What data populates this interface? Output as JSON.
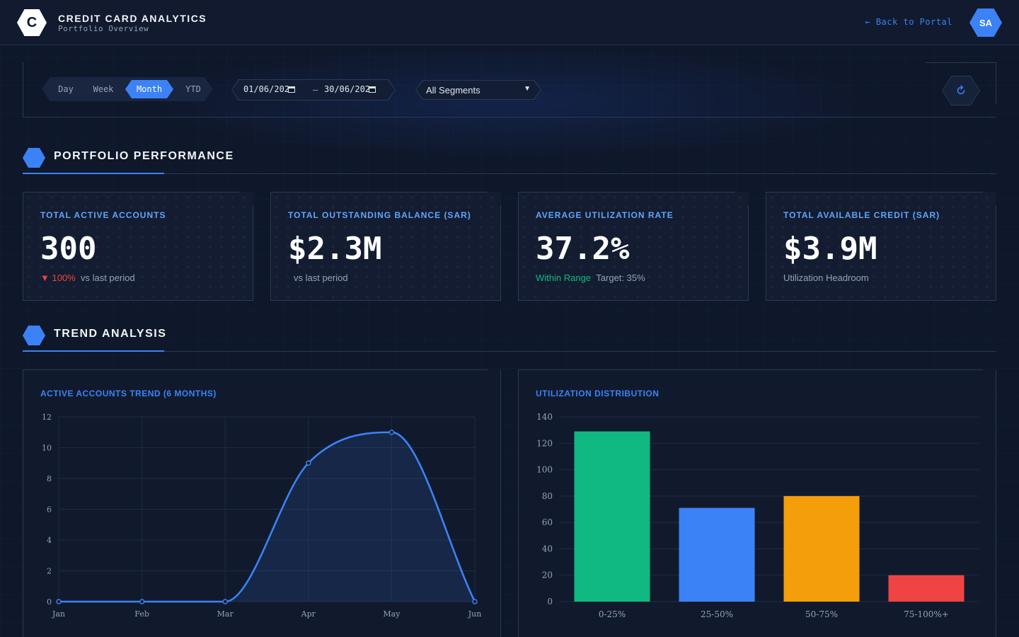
{
  "header": {
    "logo_letter": "C",
    "title": "CREDIT CARD ANALYTICS",
    "subtitle": "Portfolio Overview",
    "back_link": "← Back to Portal",
    "avatar_initials": "SA"
  },
  "filters": {
    "periods": [
      "Day",
      "Week",
      "Month",
      "YTD"
    ],
    "active_period": "Month",
    "date_from": "01/06/202",
    "date_sep": "–",
    "date_to": "30/06/202",
    "segment": "All Segments",
    "refresh_icon": "refresh-icon"
  },
  "sections": {
    "performance": "PORTFOLIO PERFORMANCE",
    "trend": "TREND ANALYSIS"
  },
  "kpis": [
    {
      "label": "TOTAL ACTIVE ACCOUNTS",
      "value": "300",
      "delta": "▼ 100%",
      "note": "vs last period"
    },
    {
      "label": "TOTAL OUTSTANDING BALANCE (SAR)",
      "value": "$2.3M",
      "note": "vs last period"
    },
    {
      "label": "AVERAGE UTILIZATION RATE",
      "value": "37.2%",
      "status": "Within Range",
      "note": "Target: 35%"
    },
    {
      "label": "TOTAL AVAILABLE CREDIT (SAR)",
      "value": "$3.9M",
      "note": "Utilization Headroom"
    }
  ],
  "colors": {
    "accent": "#3b82f6",
    "negative": "#ef4444",
    "positive": "#10b981",
    "background": "#0f172a"
  },
  "charts": {
    "trend_title": "ACTIVE ACCOUNTS TREND (6 MONTHS)",
    "util_title": "UTILIZATION DISTRIBUTION"
  },
  "chart_data": [
    {
      "type": "area",
      "title": "ACTIVE ACCOUNTS TREND (6 MONTHS)",
      "categories": [
        "Jan",
        "Feb",
        "Mar",
        "Apr",
        "May",
        "Jun"
      ],
      "values": [
        0,
        0,
        0,
        9,
        11,
        0
      ],
      "ylim": [
        0,
        12
      ],
      "yticks": [
        0,
        2,
        4,
        6,
        8,
        10,
        12
      ],
      "color": "#3b82f6",
      "grid": true
    },
    {
      "type": "bar",
      "title": "UTILIZATION DISTRIBUTION",
      "categories": [
        "0-25%",
        "25-50%",
        "50-75%",
        "75-100%+"
      ],
      "values": [
        129,
        71,
        80,
        20
      ],
      "colors": [
        "#10b981",
        "#3b82f6",
        "#f59e0b",
        "#ef4444"
      ],
      "ylim": [
        0,
        140
      ],
      "yticks": [
        0,
        20,
        40,
        60,
        80,
        100,
        120,
        140
      ],
      "grid": true
    }
  ]
}
